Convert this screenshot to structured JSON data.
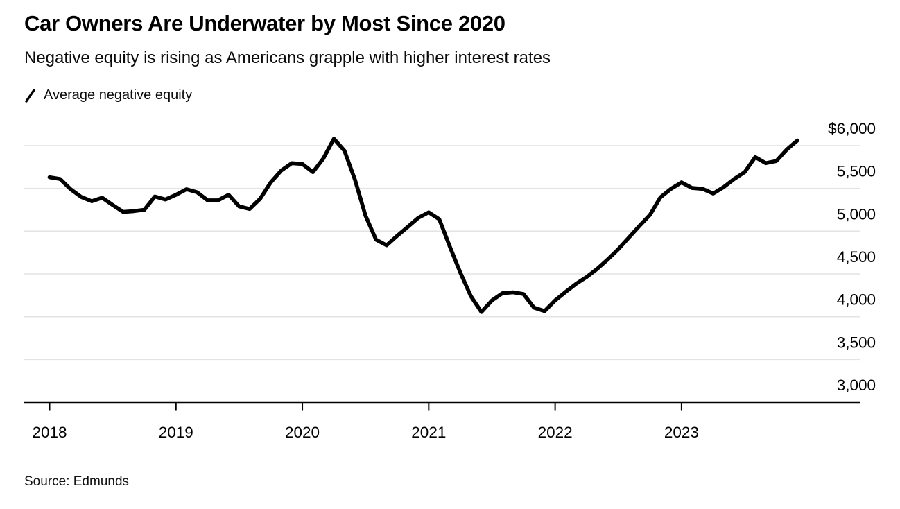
{
  "header": {
    "title": "Car Owners Are Underwater by Most Since 2020",
    "subtitle": "Negative equity is rising as Americans grapple with higher interest rates"
  },
  "legend": {
    "label": "Average negative equity",
    "icon": "diagonal-line-icon"
  },
  "source": {
    "text": "Source: Edmunds"
  },
  "colors": {
    "line": "#000000",
    "grid": "#e3e3e3",
    "axis": "#000000",
    "text": "#000000"
  },
  "chart_data": {
    "type": "line",
    "title": "Car Owners Are Underwater by Most Since 2020",
    "subtitle": "Negative equity is rising as Americans grapple with higher interest rates",
    "unit": "USD",
    "frequency": "monthly",
    "x_start": "2018-01",
    "x_end": "2023-12",
    "x_tick_labels": [
      "2018",
      "2019",
      "2020",
      "2021",
      "2022",
      "2023"
    ],
    "y_ticks": [
      {
        "value": 6000,
        "label": "$6,000"
      },
      {
        "value": 5500,
        "label": "5,500"
      },
      {
        "value": 5000,
        "label": "5,000"
      },
      {
        "value": 4500,
        "label": "4,500"
      },
      {
        "value": 4000,
        "label": "4,000"
      },
      {
        "value": 3500,
        "label": "3,500"
      },
      {
        "value": 3000,
        "label": "3,000"
      }
    ],
    "ylim": [
      3000,
      6000
    ],
    "grid": "horizontal",
    "legend_position": "top-left",
    "series": [
      {
        "name": "Average negative equity",
        "values": [
          5630,
          5610,
          5490,
          5400,
          5350,
          5390,
          5305,
          5225,
          5235,
          5250,
          5405,
          5370,
          5425,
          5490,
          5455,
          5360,
          5360,
          5425,
          5290,
          5260,
          5380,
          5570,
          5710,
          5795,
          5785,
          5690,
          5850,
          6080,
          5940,
          5600,
          5180,
          4900,
          4835,
          4945,
          5050,
          5155,
          5220,
          5140,
          4820,
          4515,
          4240,
          4055,
          4190,
          4275,
          4285,
          4265,
          4105,
          4065,
          4190,
          4290,
          4385,
          4465,
          4560,
          4670,
          4790,
          4925,
          5060,
          5190,
          5395,
          5495,
          5570,
          5505,
          5495,
          5440,
          5515,
          5610,
          5690,
          5865,
          5795,
          5820,
          5955,
          6060
        ]
      }
    ],
    "annotations": []
  }
}
